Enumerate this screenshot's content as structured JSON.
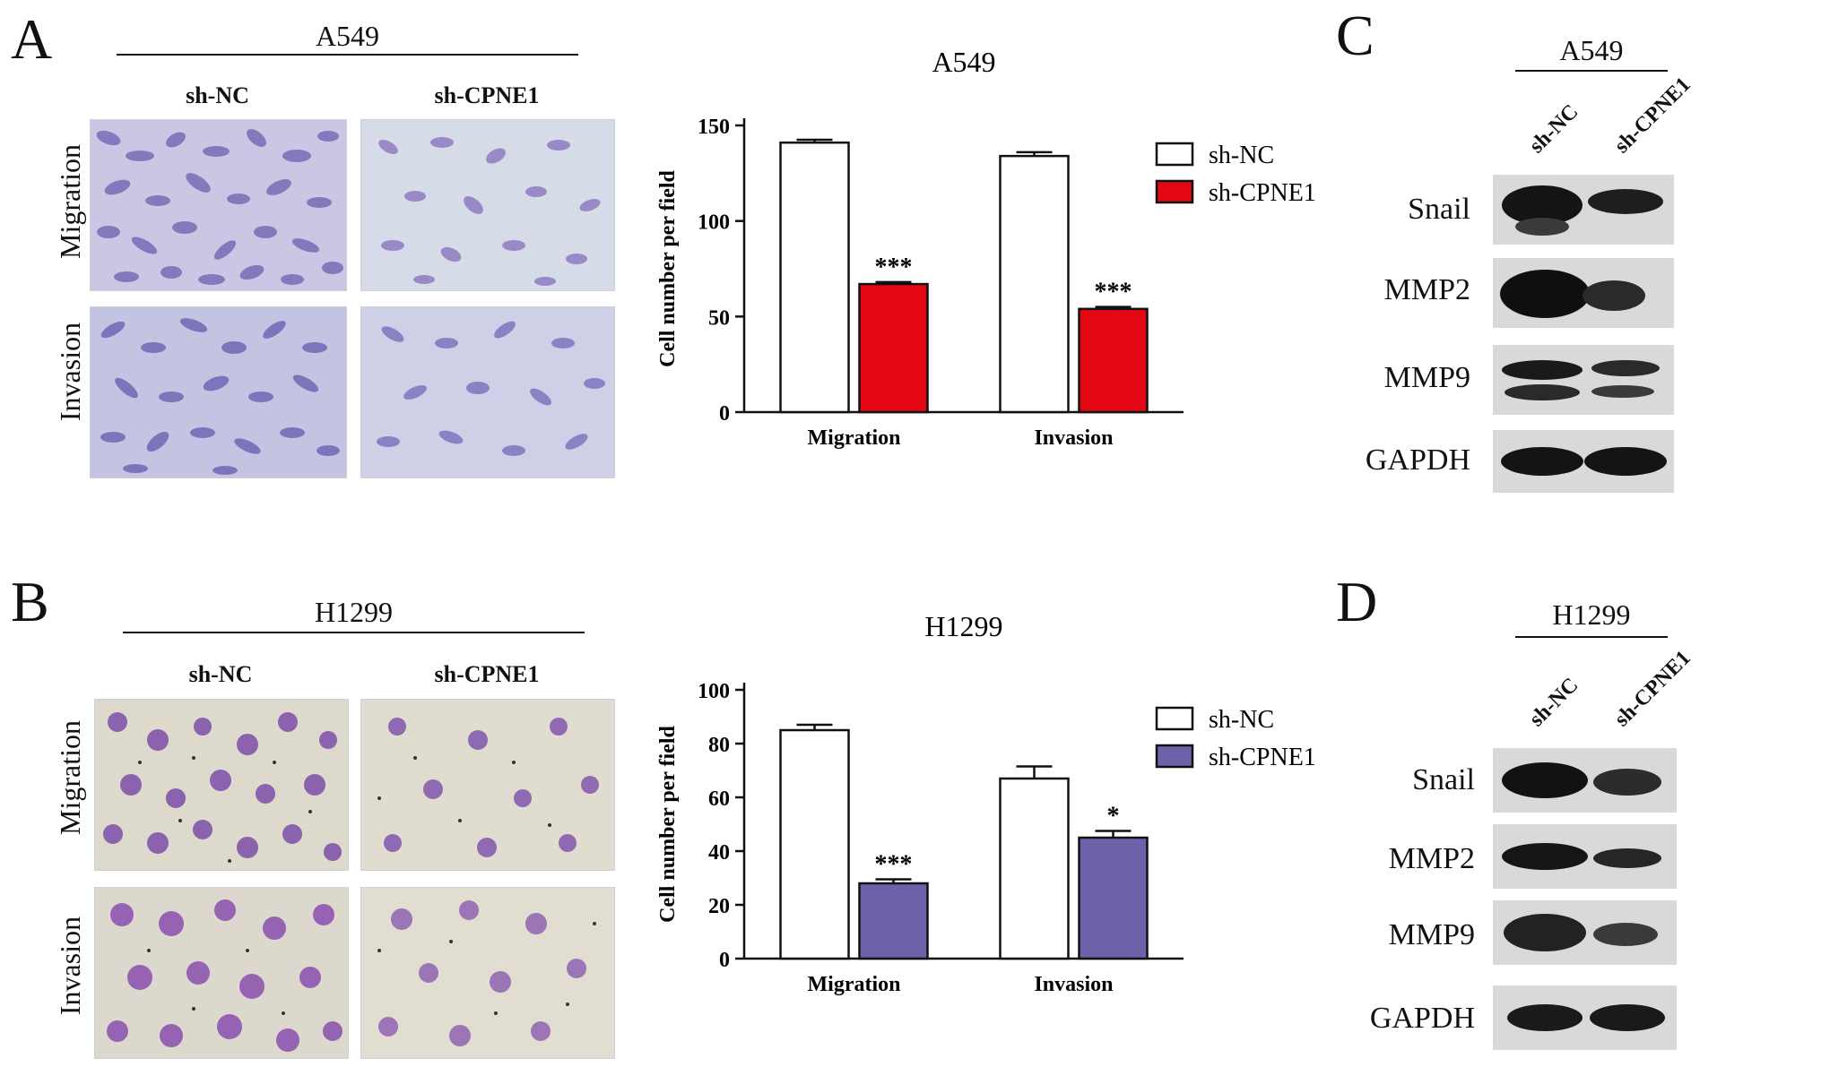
{
  "panels": {
    "A": {
      "letter": "A",
      "cell_line": "A549",
      "conditions": [
        "sh-NC",
        "sh-CPNE1"
      ],
      "rows": [
        "Migration",
        "Invasion"
      ]
    },
    "B": {
      "letter": "B",
      "cell_line": "H1299",
      "conditions": [
        "sh-NC",
        "sh-CPNE1"
      ],
      "rows": [
        "Migration",
        "Invasion"
      ]
    },
    "C": {
      "letter": "C",
      "cell_line": "A549",
      "lanes": [
        "sh-NC",
        "sh-CPNE1"
      ],
      "proteins": [
        "Snail",
        "MMP2",
        "MMP9",
        "GAPDH"
      ]
    },
    "D": {
      "letter": "D",
      "cell_line": "H1299",
      "lanes": [
        "sh-NC",
        "sh-CPNE1"
      ],
      "proteins": [
        "Snail",
        "MMP2",
        "MMP9",
        "GAPDH"
      ]
    }
  },
  "chart_data": [
    {
      "type": "bar",
      "title": "A549",
      "ylabel": "Cell number per field",
      "categories": [
        "Migration",
        "Invasion"
      ],
      "ylim": [
        0,
        150
      ],
      "yticks": [
        0,
        50,
        100,
        150
      ],
      "series": [
        {
          "name": "sh-NC",
          "values": [
            141,
            134
          ],
          "errors": [
            1.5,
            2
          ],
          "color": "#ffffff"
        },
        {
          "name": "sh-CPNE1",
          "values": [
            67,
            54
          ],
          "errors": [
            1,
            1
          ],
          "color": "#e30613"
        }
      ],
      "significance": [
        [
          "",
          ""
        ],
        [
          "***",
          "***"
        ]
      ],
      "legend": "top-right"
    },
    {
      "type": "bar",
      "title": "H1299",
      "ylabel": "Cell number per field",
      "categories": [
        "Migration",
        "Invasion"
      ],
      "ylim": [
        0,
        100
      ],
      "yticks": [
        0,
        20,
        40,
        60,
        80,
        100
      ],
      "series": [
        {
          "name": "sh-NC",
          "values": [
            85,
            67
          ],
          "errors": [
            2,
            4.5
          ],
          "color": "#ffffff"
        },
        {
          "name": "sh-CPNE1",
          "values": [
            28,
            45
          ],
          "errors": [
            1.5,
            2.5
          ],
          "color": "#6f60aa"
        }
      ],
      "significance": [
        [
          "",
          ""
        ],
        [
          "***",
          "*"
        ]
      ],
      "legend": "top-right"
    }
  ]
}
